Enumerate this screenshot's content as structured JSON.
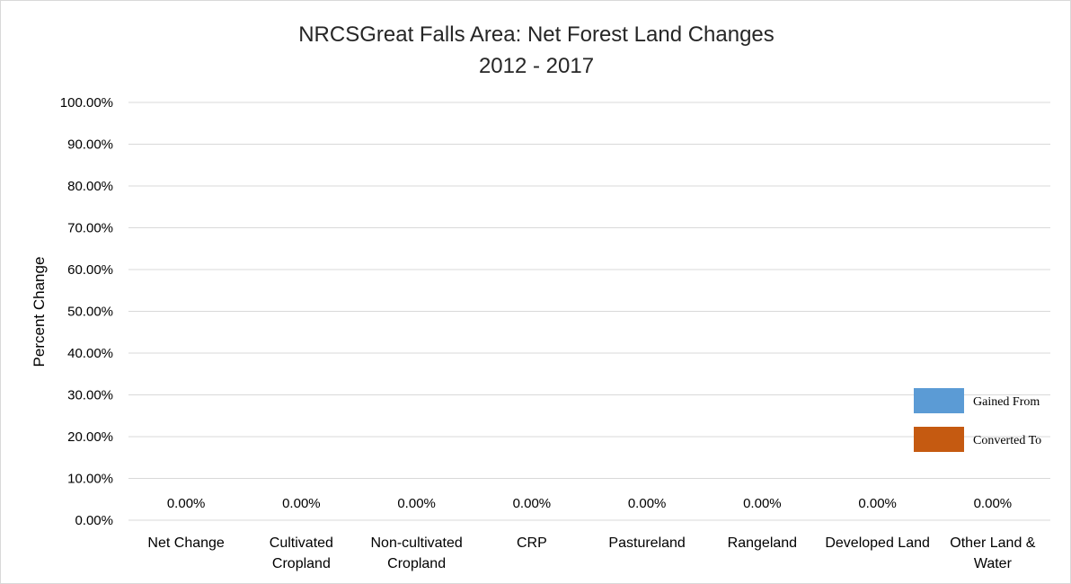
{
  "chart_data": {
    "type": "bar",
    "title": "NRCSGreat Falls Area: Net Forest Land Changes",
    "subtitle": "2012 - 2017",
    "xlabel": "",
    "ylabel": "Percent Change",
    "ylim": [
      0,
      100
    ],
    "y_ticks": [
      "0.00%",
      "10.00%",
      "20.00%",
      "30.00%",
      "40.00%",
      "50.00%",
      "60.00%",
      "70.00%",
      "80.00%",
      "90.00%",
      "100.00%"
    ],
    "grid": true,
    "legend_position": "right",
    "categories": [
      [
        "Net Change"
      ],
      [
        "Cultivated",
        "Cropland"
      ],
      [
        "Non-cultivated",
        "Cropland"
      ],
      [
        "CRP"
      ],
      [
        "Pastureland"
      ],
      [
        "Rangeland"
      ],
      [
        "Developed Land"
      ],
      [
        "Other Land &",
        "Water"
      ]
    ],
    "series": [
      {
        "name": "Gained From",
        "color": "#5b9bd5",
        "values": [
          0,
          0,
          0,
          0,
          0,
          0,
          0,
          0
        ]
      },
      {
        "name": "Converted To",
        "color": "#c55a11",
        "values": [
          0,
          0,
          0,
          0,
          0,
          0,
          0,
          0
        ]
      }
    ],
    "data_labels": [
      "0.00%",
      "0.00%",
      "0.00%",
      "0.00%",
      "0.00%",
      "0.00%",
      "0.00%",
      "0.00%"
    ]
  }
}
